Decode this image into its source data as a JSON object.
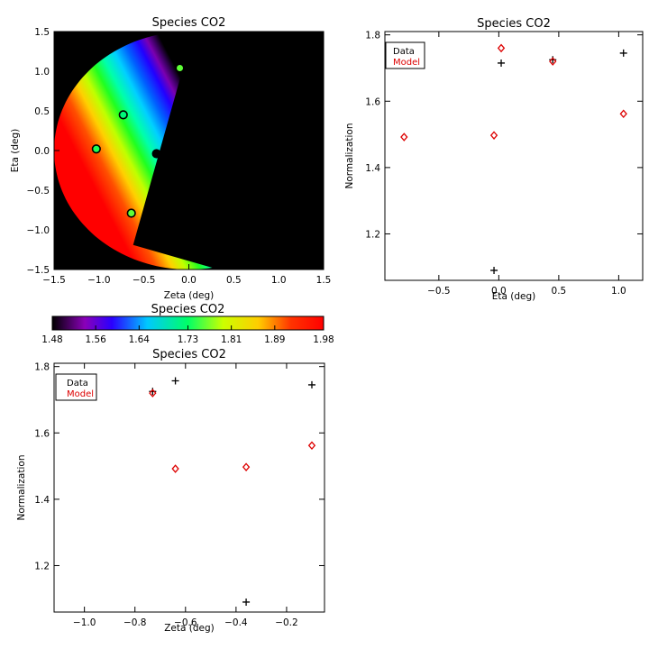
{
  "chart_data": [
    {
      "id": "map",
      "type": "heatmap",
      "title": "Species CO2",
      "xlabel": "Zeta (deg)",
      "ylabel": "Eta (deg)",
      "xlim": [
        -1.5,
        1.5
      ],
      "ylim": [
        -1.5,
        1.5
      ],
      "xticks": [
        -1.5,
        -1.0,
        -0.5,
        0.0,
        0.5,
        1.0,
        1.5
      ],
      "yticks": [
        -1.5,
        -1.0,
        -0.5,
        0.0,
        0.5,
        1.0,
        1.5
      ],
      "xtick_labels": [
        "−1.5",
        "−1.0",
        "−0.5",
        "0.0",
        "0.5",
        "1.0",
        "1.5"
      ],
      "ytick_labels": [
        "−1.5",
        "−1.0",
        "−0.5",
        "0.0",
        "0.5",
        "1.0",
        "1.5"
      ],
      "background_color": "#000000",
      "field": {
        "center": [
          0.0,
          0.0
        ],
        "radius": 1.5,
        "value_min": 1.48,
        "value_max": 1.98
      },
      "points": [
        {
          "x": -1.03,
          "y": 0.02,
          "value": 1.74
        },
        {
          "x": -0.73,
          "y": 0.45,
          "value": 1.72
        },
        {
          "x": -0.1,
          "y": 1.04,
          "value": 1.76
        },
        {
          "x": -0.64,
          "y": -0.79,
          "value": 1.76
        },
        {
          "x": -0.36,
          "y": -0.04,
          "value": 1.09
        }
      ]
    },
    {
      "id": "colorbar",
      "type": "colorbar",
      "title": "Species CO2",
      "range": [
        1.48,
        1.98
      ],
      "tick_values": [
        1.48,
        1.56,
        1.64,
        1.73,
        1.81,
        1.89,
        1.98
      ],
      "tick_labels": [
        "1.48",
        "1.56",
        "1.64",
        "1.73",
        "1.81",
        "1.89",
        "1.98"
      ]
    },
    {
      "id": "eta",
      "type": "scatter",
      "title": "Species CO2",
      "xlabel": "Eta (deg)",
      "ylabel": "Normalization",
      "xlim": [
        -0.95,
        1.2
      ],
      "ylim": [
        1.06,
        1.81
      ],
      "xticks": [
        -0.5,
        0.0,
        0.5,
        1.0
      ],
      "yticks": [
        1.2,
        1.4,
        1.6,
        1.8
      ],
      "xtick_labels": [
        "−0.5",
        "0.0",
        "0.5",
        "1.0"
      ],
      "ytick_labels": [
        "1.2",
        "1.4",
        "1.6",
        "1.8"
      ],
      "legend": [
        "Data",
        "Model"
      ],
      "legend_position": "top-left",
      "series": [
        {
          "name": "Data",
          "marker": "plus",
          "color": "#000000",
          "x": [
            0.02,
            -0.04,
            0.45,
            1.04
          ],
          "y": [
            1.715,
            1.09,
            1.725,
            1.745
          ]
        },
        {
          "name": "Model",
          "marker": "diamond",
          "color": "#dd0000",
          "x": [
            -0.79,
            -0.04,
            0.02,
            0.45,
            1.04
          ],
          "y": [
            1.492,
            1.497,
            1.76,
            1.72,
            1.562
          ]
        }
      ]
    },
    {
      "id": "zeta",
      "type": "scatter",
      "title": "Species CO2",
      "xlabel": "Zeta (deg)",
      "ylabel": "Normalization",
      "xlim": [
        -1.12,
        -0.05
      ],
      "ylim": [
        1.06,
        1.81
      ],
      "xticks": [
        -1.0,
        -0.8,
        -0.6,
        -0.4,
        -0.2
      ],
      "yticks": [
        1.2,
        1.4,
        1.6,
        1.8
      ],
      "xtick_labels": [
        "−1.0",
        "−0.8",
        "−0.6",
        "−0.4",
        "−0.2"
      ],
      "ytick_labels": [
        "1.2",
        "1.4",
        "1.6",
        "1.8"
      ],
      "legend": [
        "Data",
        "Model"
      ],
      "legend_position": "top-left",
      "series": [
        {
          "name": "Data",
          "marker": "plus",
          "color": "#000000",
          "x": [
            -0.73,
            -0.64,
            -0.36,
            -0.1
          ],
          "y": [
            1.725,
            1.757,
            1.09,
            1.745
          ]
        },
        {
          "name": "Model",
          "marker": "diamond",
          "color": "#dd0000",
          "x": [
            -1.03,
            -0.73,
            -0.64,
            -0.36,
            -0.1
          ],
          "y": [
            1.76,
            1.72,
            1.492,
            1.497,
            1.562
          ]
        }
      ]
    }
  ]
}
